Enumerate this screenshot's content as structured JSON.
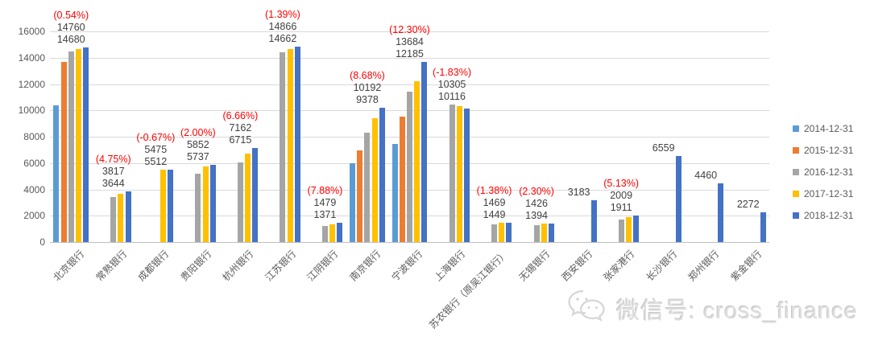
{
  "chart_data": {
    "type": "bar",
    "title": "",
    "xlabel": "",
    "ylabel": "",
    "ylim": [
      0,
      16000
    ],
    "yticks": [
      0,
      2000,
      4000,
      6000,
      8000,
      10000,
      12000,
      14000,
      16000
    ],
    "grid": "horizontal",
    "legend_position": "right",
    "categories": [
      "北京银行",
      "常熟银行",
      "成都银行",
      "贵阳银行",
      "杭州银行",
      "江苏银行",
      "江阴银行",
      "南京银行",
      "宁波银行",
      "上海银行",
      "苏农银行（原吴江银行）",
      "无锡银行",
      "西安银行",
      "张家港行",
      "长沙银行",
      "郑州银行",
      "紫金银行"
    ],
    "series": [
      {
        "name": "2014-12-31",
        "color": "#5B9BD5",
        "values": [
          10400,
          null,
          null,
          null,
          null,
          null,
          null,
          6000,
          7450,
          null,
          null,
          null,
          null,
          null,
          null,
          null,
          null
        ]
      },
      {
        "name": "2015-12-31",
        "color": "#ED7D31",
        "values": [
          13700,
          null,
          null,
          null,
          null,
          null,
          null,
          6950,
          9500,
          null,
          null,
          null,
          null,
          null,
          null,
          null,
          null
        ]
      },
      {
        "name": "2016-12-31",
        "color": "#A5A5A5",
        "values": [
          14450,
          3430,
          null,
          5200,
          6070,
          14430,
          1230,
          8300,
          11450,
          10450,
          1330,
          1290,
          null,
          1730,
          null,
          null,
          null
        ]
      },
      {
        "name": "2017-12-31",
        "color": "#FFC000",
        "values": [
          14680,
          3644,
          5512,
          5737,
          6715,
          14662,
          1371,
          9378,
          12185,
          10305,
          1449,
          1394,
          null,
          1911,
          null,
          null,
          null
        ]
      },
      {
        "name": "2018-12-31",
        "color": "#4472C4",
        "values": [
          14760,
          3817,
          5475,
          5852,
          7162,
          14866,
          1479,
          10192,
          13684,
          10116,
          1469,
          1426,
          3183,
          2009,
          6559,
          4460,
          2272
        ]
      }
    ],
    "annotations": [
      {
        "pct": "(0.54%)",
        "lines": [
          "14760",
          "14680"
        ]
      },
      {
        "pct": "(4.75%)",
        "lines": [
          "3817",
          "3644"
        ]
      },
      {
        "pct": "(-0.67%)",
        "lines": [
          "5475",
          "5512"
        ]
      },
      {
        "pct": "(2.00%)",
        "lines": [
          "5852",
          "5737"
        ]
      },
      {
        "pct": "(6.66%)",
        "lines": [
          "7162",
          "6715"
        ]
      },
      {
        "pct": "(1.39%)",
        "lines": [
          "14866",
          "14662"
        ]
      },
      {
        "pct": "(7.88%)",
        "lines": [
          "1479",
          "1371"
        ]
      },
      {
        "pct": "(8.68%)",
        "lines": [
          "10192",
          "9378"
        ]
      },
      {
        "pct": "(12.30%)",
        "lines": [
          "13684",
          "12185"
        ]
      },
      {
        "pct": "(-1.83%)",
        "lines": [
          "10305",
          "10116"
        ]
      },
      {
        "pct": "(1.38%)",
        "lines": [
          "1469",
          "1449"
        ]
      },
      {
        "pct": "(2.30%)",
        "lines": [
          "1426",
          "1394"
        ]
      },
      {
        "pct": "",
        "lines": [
          "3183"
        ]
      },
      {
        "pct": "(5.13%)",
        "lines": [
          "2009",
          "1911"
        ]
      },
      {
        "pct": "",
        "lines": [
          "6559"
        ]
      },
      {
        "pct": "",
        "lines": [
          "4460"
        ]
      },
      {
        "pct": "",
        "lines": [
          "2272"
        ]
      }
    ]
  },
  "colors": {
    "pct_label": "#ff0000",
    "value_label": "#404040",
    "axis_text": "#595959",
    "gridline": "#d9d9d9",
    "axis_line": "#bfbfbf"
  },
  "watermark": {
    "icon": "wechat-icon",
    "text": "微信号: cross_finance"
  }
}
